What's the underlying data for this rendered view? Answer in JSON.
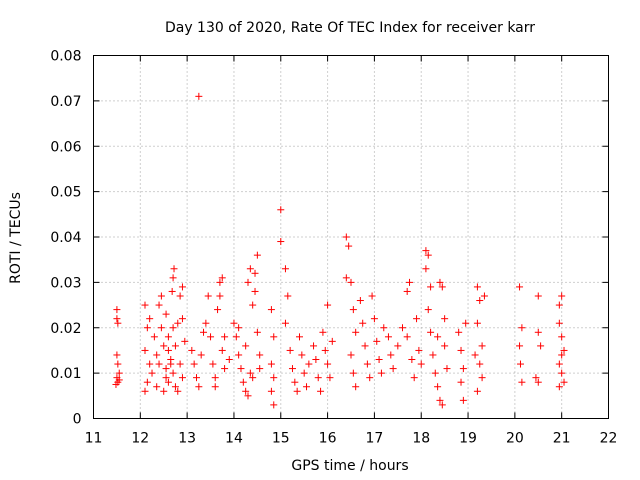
{
  "chart_data": {
    "type": "scatter",
    "title": "Day 130 of 2020, Rate Of TEC Index for receiver karr",
    "xlabel": "GPS time / hours",
    "ylabel": "ROTI / TECUs",
    "xlim": [
      11,
      22
    ],
    "ylim": [
      0,
      0.08
    ],
    "x_ticks": [
      "11",
      "12",
      "13",
      "14",
      "15",
      "16",
      "17",
      "18",
      "19",
      "20",
      "21",
      "22"
    ],
    "y_ticks": [
      "0",
      "0.01",
      "0.02",
      "0.03",
      "0.04",
      "0.05",
      "0.06",
      "0.07",
      "0.08"
    ],
    "grid": true,
    "marker": "plus",
    "color": "#ff0000",
    "series": [
      {
        "name": "ROTI",
        "points": [
          [
            11.5,
            0.024
          ],
          [
            11.5,
            0.022
          ],
          [
            11.52,
            0.021
          ],
          [
            11.5,
            0.014
          ],
          [
            11.52,
            0.012
          ],
          [
            11.5,
            0.009
          ],
          [
            11.52,
            0.008
          ],
          [
            11.55,
            0.0085
          ],
          [
            11.48,
            0.0075
          ],
          [
            11.55,
            0.01
          ],
          [
            12.1,
            0.025
          ],
          [
            12.15,
            0.02
          ],
          [
            12.1,
            0.015
          ],
          [
            12.2,
            0.012
          ],
          [
            12.15,
            0.008
          ],
          [
            12.1,
            0.006
          ],
          [
            12.25,
            0.01
          ],
          [
            12.3,
            0.018
          ],
          [
            12.2,
            0.022
          ],
          [
            12.35,
            0.014
          ],
          [
            12.4,
            0.025
          ],
          [
            12.45,
            0.02
          ],
          [
            12.5,
            0.016
          ],
          [
            12.55,
            0.011
          ],
          [
            12.6,
            0.008
          ],
          [
            12.5,
            0.006
          ],
          [
            12.45,
            0.027
          ],
          [
            12.55,
            0.023
          ],
          [
            12.6,
            0.018
          ],
          [
            12.65,
            0.013
          ],
          [
            12.7,
            0.031
          ],
          [
            12.72,
            0.033
          ],
          [
            12.68,
            0.028
          ],
          [
            12.7,
            0.02
          ],
          [
            12.75,
            0.016
          ],
          [
            12.7,
            0.01
          ],
          [
            12.75,
            0.007
          ],
          [
            12.8,
            0.006
          ],
          [
            12.85,
            0.012
          ],
          [
            12.9,
            0.029
          ],
          [
            12.85,
            0.027
          ],
          [
            12.9,
            0.022
          ],
          [
            12.95,
            0.017
          ],
          [
            12.9,
            0.009
          ],
          [
            12.6,
            0.015
          ],
          [
            12.65,
            0.012
          ],
          [
            12.55,
            0.009
          ],
          [
            12.35,
            0.007
          ],
          [
            12.4,
            0.012
          ],
          [
            12.8,
            0.021
          ],
          [
            13.25,
            0.071
          ],
          [
            13.1,
            0.015
          ],
          [
            13.15,
            0.012
          ],
          [
            13.2,
            0.009
          ],
          [
            13.25,
            0.007
          ],
          [
            13.3,
            0.014
          ],
          [
            13.35,
            0.019
          ],
          [
            13.4,
            0.021
          ],
          [
            13.45,
            0.027
          ],
          [
            13.5,
            0.018
          ],
          [
            13.55,
            0.012
          ],
          [
            13.6,
            0.009
          ],
          [
            13.65,
            0.024
          ],
          [
            13.7,
            0.027
          ],
          [
            13.75,
            0.015
          ],
          [
            13.8,
            0.011
          ],
          [
            13.7,
            0.03
          ],
          [
            13.75,
            0.031
          ],
          [
            13.6,
            0.007
          ],
          [
            13.8,
            0.018
          ],
          [
            13.9,
            0.013
          ],
          [
            14.0,
            0.021
          ],
          [
            14.05,
            0.018
          ],
          [
            14.1,
            0.014
          ],
          [
            14.15,
            0.011
          ],
          [
            14.2,
            0.008
          ],
          [
            14.25,
            0.006
          ],
          [
            14.3,
            0.03
          ],
          [
            14.35,
            0.033
          ],
          [
            14.4,
            0.025
          ],
          [
            14.45,
            0.028
          ],
          [
            14.5,
            0.019
          ],
          [
            14.55,
            0.014
          ],
          [
            14.45,
            0.032
          ],
          [
            14.5,
            0.036
          ],
          [
            14.35,
            0.01
          ],
          [
            14.4,
            0.009
          ],
          [
            14.3,
            0.005
          ],
          [
            14.1,
            0.02
          ],
          [
            14.25,
            0.016
          ],
          [
            14.55,
            0.011
          ],
          [
            14.8,
            0.024
          ],
          [
            14.85,
            0.018
          ],
          [
            14.8,
            0.012
          ],
          [
            14.85,
            0.009
          ],
          [
            14.8,
            0.006
          ],
          [
            14.85,
            0.003
          ],
          [
            15.0,
            0.046
          ],
          [
            15.0,
            0.039
          ],
          [
            15.1,
            0.033
          ],
          [
            15.15,
            0.027
          ],
          [
            15.1,
            0.021
          ],
          [
            15.2,
            0.015
          ],
          [
            15.25,
            0.011
          ],
          [
            15.3,
            0.008
          ],
          [
            15.35,
            0.006
          ],
          [
            15.4,
            0.018
          ],
          [
            15.45,
            0.014
          ],
          [
            15.5,
            0.01
          ],
          [
            15.55,
            0.007
          ],
          [
            15.6,
            0.012
          ],
          [
            15.7,
            0.016
          ],
          [
            15.75,
            0.013
          ],
          [
            15.8,
            0.009
          ],
          [
            15.85,
            0.006
          ],
          [
            15.9,
            0.019
          ],
          [
            15.95,
            0.015
          ],
          [
            16.0,
            0.012
          ],
          [
            16.05,
            0.009
          ],
          [
            16.1,
            0.017
          ],
          [
            16.0,
            0.025
          ],
          [
            16.4,
            0.04
          ],
          [
            16.45,
            0.038
          ],
          [
            16.4,
            0.031
          ],
          [
            16.5,
            0.03
          ],
          [
            16.55,
            0.024
          ],
          [
            16.6,
            0.019
          ],
          [
            16.5,
            0.014
          ],
          [
            16.55,
            0.01
          ],
          [
            16.6,
            0.007
          ],
          [
            16.7,
            0.026
          ],
          [
            16.75,
            0.021
          ],
          [
            16.8,
            0.016
          ],
          [
            16.85,
            0.012
          ],
          [
            16.9,
            0.009
          ],
          [
            16.95,
            0.027
          ],
          [
            17.0,
            0.022
          ],
          [
            17.05,
            0.017
          ],
          [
            17.1,
            0.013
          ],
          [
            17.15,
            0.01
          ],
          [
            17.2,
            0.02
          ],
          [
            17.3,
            0.018
          ],
          [
            17.35,
            0.014
          ],
          [
            17.4,
            0.011
          ],
          [
            17.5,
            0.016
          ],
          [
            17.6,
            0.02
          ],
          [
            17.7,
            0.028
          ],
          [
            17.75,
            0.03
          ],
          [
            17.7,
            0.018
          ],
          [
            17.8,
            0.013
          ],
          [
            17.85,
            0.009
          ],
          [
            17.9,
            0.022
          ],
          [
            17.95,
            0.015
          ],
          [
            18.0,
            0.012
          ],
          [
            18.1,
            0.037
          ],
          [
            18.15,
            0.036
          ],
          [
            18.1,
            0.033
          ],
          [
            18.2,
            0.029
          ],
          [
            18.15,
            0.024
          ],
          [
            18.2,
            0.019
          ],
          [
            18.25,
            0.014
          ],
          [
            18.3,
            0.01
          ],
          [
            18.35,
            0.007
          ],
          [
            18.4,
            0.004
          ],
          [
            18.45,
            0.003
          ],
          [
            18.4,
            0.03
          ],
          [
            18.45,
            0.029
          ],
          [
            18.5,
            0.022
          ],
          [
            18.5,
            0.016
          ],
          [
            18.55,
            0.011
          ],
          [
            18.35,
            0.018
          ],
          [
            18.8,
            0.019
          ],
          [
            18.85,
            0.015
          ],
          [
            18.9,
            0.011
          ],
          [
            18.85,
            0.008
          ],
          [
            18.9,
            0.004
          ],
          [
            18.95,
            0.021
          ],
          [
            19.2,
            0.029
          ],
          [
            19.25,
            0.026
          ],
          [
            19.2,
            0.021
          ],
          [
            19.3,
            0.016
          ],
          [
            19.25,
            0.012
          ],
          [
            19.3,
            0.009
          ],
          [
            19.2,
            0.006
          ],
          [
            19.35,
            0.027
          ],
          [
            19.15,
            0.014
          ],
          [
            20.1,
            0.029
          ],
          [
            20.15,
            0.02
          ],
          [
            20.1,
            0.016
          ],
          [
            20.12,
            0.012
          ],
          [
            20.15,
            0.008
          ],
          [
            20.5,
            0.027
          ],
          [
            20.5,
            0.019
          ],
          [
            20.55,
            0.016
          ],
          [
            20.45,
            0.009
          ],
          [
            20.5,
            0.008
          ],
          [
            20.95,
            0.025
          ],
          [
            21.0,
            0.027
          ],
          [
            20.95,
            0.021
          ],
          [
            21.0,
            0.018
          ],
          [
            21.05,
            0.015
          ],
          [
            20.95,
            0.012
          ],
          [
            21.0,
            0.01
          ],
          [
            21.05,
            0.008
          ],
          [
            20.95,
            0.007
          ],
          [
            21.0,
            0.014
          ]
        ]
      }
    ]
  }
}
